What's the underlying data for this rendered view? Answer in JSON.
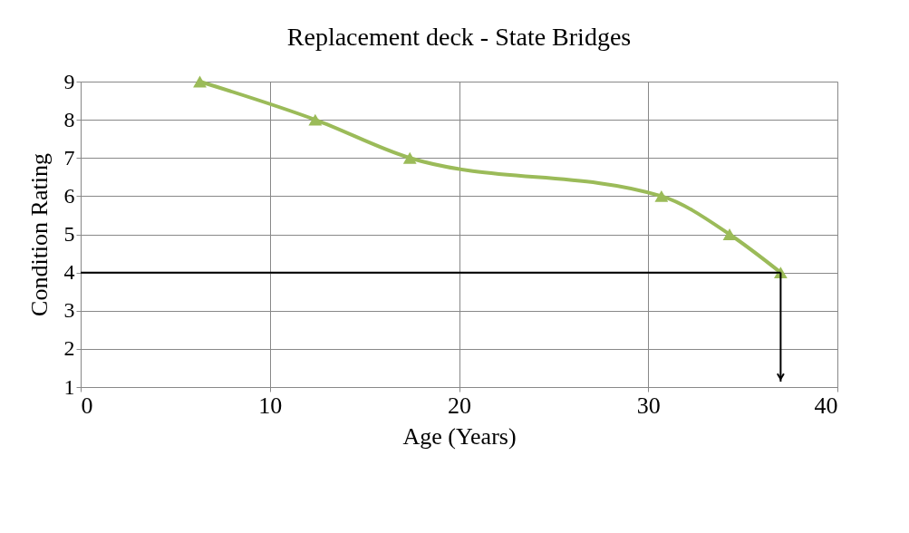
{
  "chart_data": {
    "type": "line",
    "title": "Replacement deck - State Bridges",
    "xlabel": "Age (Years)",
    "ylabel": "Condition Rating",
    "x": [
      6.3,
      12.4,
      17.4,
      30.7,
      34.3,
      37.0
    ],
    "series": [
      {
        "color": "#9bbb59",
        "values": [
          9,
          8,
          7,
          6,
          5,
          4
        ]
      }
    ],
    "xlim": [
      0,
      40
    ],
    "xticks": [
      0,
      10,
      20,
      30,
      40
    ],
    "ylim": [
      1,
      9
    ],
    "yticks": [
      1,
      2,
      3,
      4,
      5,
      6,
      7,
      8,
      9
    ],
    "ref_lines": [
      {
        "axis": "y",
        "value": 4,
        "color": "#000000"
      },
      {
        "axis": "x",
        "value": 37.0,
        "color": "#000000"
      }
    ],
    "grid": true,
    "marker": "triangle",
    "line_style": "solid"
  }
}
